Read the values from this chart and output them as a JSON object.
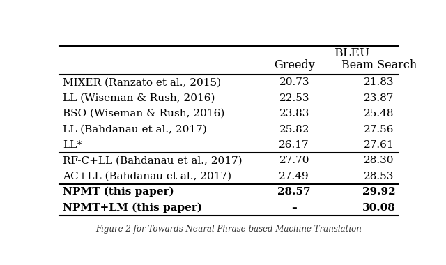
{
  "col_header_label": "BLEU",
  "greedy_label": "Greedy",
  "beam_label": "Beam Search",
  "rows": [
    [
      "MIXER (Ranzato et al., 2015)",
      "20.73",
      "21.83",
      false
    ],
    [
      "LL (Wiseman & Rush, 2016)",
      "22.53",
      "23.87",
      false
    ],
    [
      "BSO (Wiseman & Rush, 2016)",
      "23.83",
      "25.48",
      false
    ],
    [
      "LL (Bahdanau et al., 2017)",
      "25.82",
      "27.56",
      false
    ],
    [
      "LL*",
      "26.17",
      "27.61",
      false
    ],
    [
      "RF-C+LL (Bahdanau et al., 2017)",
      "27.70",
      "28.30",
      false
    ],
    [
      "AC+LL (Bahdanau et al., 2017)",
      "27.49",
      "28.53",
      false
    ],
    [
      "NPMT (this paper)",
      "28.57",
      "29.92",
      true
    ],
    [
      "NPMT+LM (this paper)",
      "–",
      "30.08",
      true
    ]
  ],
  "group_separators_after": [
    4,
    6
  ],
  "background_color": "#ffffff",
  "text_color": "#000000",
  "font_size": 11.0,
  "header_font_size": 11.5,
  "caption": "Figure 2 for Towards Neural Phrase-based Machine Translation",
  "caption_fontsize": 8.5
}
